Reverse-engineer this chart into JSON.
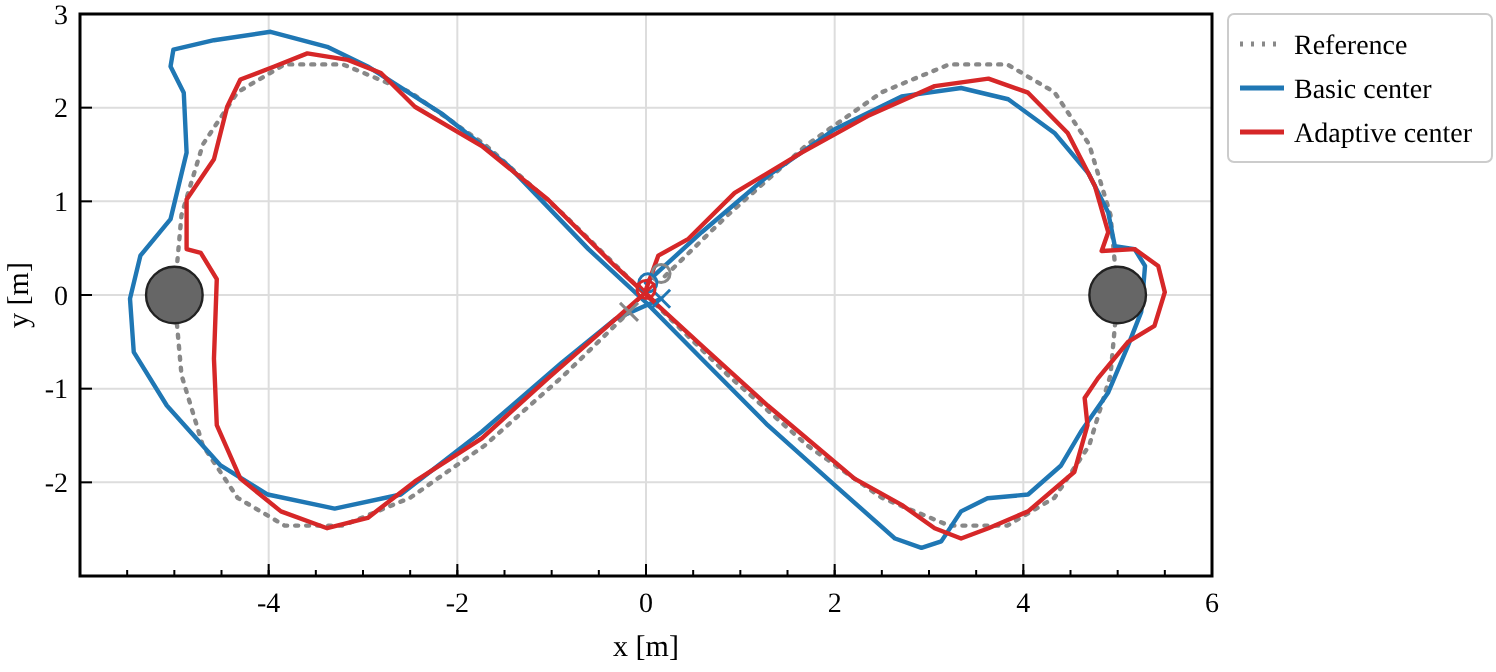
{
  "chart_data": {
    "type": "line",
    "xlabel": "x [m]",
    "ylabel": "y [m]",
    "xlim": [
      -6,
      6
    ],
    "ylim": [
      -3,
      3
    ],
    "xticks": [
      -4,
      -2,
      0,
      2,
      4,
      6
    ],
    "yticks": [
      -2,
      -1,
      0,
      1,
      2,
      3
    ],
    "grid": true,
    "legend": "top right",
    "series": [
      {
        "name": "Reference",
        "color": "#888888",
        "line_style": "dotted",
        "x": [
          0.2,
          0.868,
          1.71,
          2.5,
          3.214,
          3.83,
          4.33,
          4.698,
          4.924,
          5,
          4.924,
          4.698,
          4.33,
          3.83,
          3.214,
          2.5,
          1.71,
          0.868,
          0,
          -0.868,
          -1.71,
          -2.5,
          -3.214,
          -3.83,
          -4.33,
          -4.698,
          -4.924,
          -5,
          -4.924,
          -4.698,
          -4.33,
          -3.83,
          -3.214,
          -2.5,
          -1.71,
          -0.868,
          -0.2
        ],
        "values": [
          0.2,
          0.855,
          1.607,
          2.165,
          2.462,
          2.462,
          2.165,
          1.607,
          0.855,
          0,
          -0.855,
          -1.607,
          -2.165,
          -2.462,
          -2.462,
          -2.165,
          -1.607,
          -0.855,
          0,
          0.855,
          1.607,
          2.165,
          2.462,
          2.462,
          2.165,
          1.607,
          0.855,
          0,
          -0.855,
          -1.607,
          -2.165,
          -2.462,
          -2.462,
          -2.165,
          -1.607,
          -0.855,
          -0.2
        ]
      },
      {
        "name": "Basic center",
        "color": "#1f77b4",
        "line_style": "solid",
        "x": [
          0,
          0.59,
          1.29,
          2,
          2.71,
          3.34,
          3.84,
          4.33,
          4.69,
          4.9,
          4.97,
          5.18,
          5.29,
          5.25,
          5.11,
          4.9,
          4.61,
          4.4,
          4.05,
          3.62,
          3.34,
          3.13,
          2.92,
          2.64,
          2,
          1.29,
          0.59,
          0,
          -0.61,
          -1.46,
          -2.17,
          -2.95,
          -3.38,
          -3.98,
          -4.58,
          -5.01,
          -5.04,
          -4.9,
          -4.87,
          -5.04,
          -5.36,
          -5.47,
          -5.43,
          -5.08,
          -4.51,
          -4.01,
          -3.3,
          -2.6,
          -1.74,
          -0.89,
          -0.33,
          0.16
        ],
        "values": [
          0.13,
          0.67,
          1.27,
          1.77,
          2.12,
          2.21,
          2.09,
          1.73,
          1.3,
          0.88,
          0.52,
          0.49,
          0.31,
          -0.18,
          -0.54,
          -1.04,
          -1.46,
          -1.82,
          -2.13,
          -2.17,
          -2.31,
          -2.63,
          -2.7,
          -2.6,
          -2.03,
          -1.39,
          -0.68,
          -0.08,
          0.49,
          1.38,
          1.94,
          2.44,
          2.65,
          2.81,
          2.72,
          2.62,
          2.44,
          2.16,
          1.52,
          0.81,
          0.42,
          -0.04,
          -0.61,
          -1.18,
          -1.82,
          -2.13,
          -2.28,
          -2.13,
          -1.46,
          -0.72,
          -0.26,
          -0.04
        ]
      },
      {
        "name": "Adaptive center",
        "color": "#d62728",
        "line_style": "solid",
        "x": [
          0,
          0.13,
          0.45,
          0.94,
          1.65,
          2.35,
          3.06,
          3.63,
          4.05,
          4.47,
          4.76,
          4.9,
          4.83,
          5.18,
          5.43,
          5.5,
          5.39,
          5.11,
          4.79,
          4.65,
          4.68,
          4.54,
          4.05,
          3.63,
          3.34,
          3.06,
          2.71,
          2.21,
          1.29,
          0.59,
          0.09,
          -0.33,
          -1.04,
          -1.74,
          -2.45,
          -2.81,
          -3.16,
          -3.59,
          -3.94,
          -4.3,
          -4.44,
          -4.58,
          -4.87,
          -4.87,
          -4.72,
          -4.55,
          -4.58,
          -4.55,
          -4.3,
          -3.87,
          -3.38,
          -2.95,
          -2.45,
          -1.74,
          -1.04,
          -0.36,
          0
        ],
        "values": [
          0.06,
          0.42,
          0.6,
          1.09,
          1.52,
          1.91,
          2.23,
          2.31,
          2.16,
          1.73,
          1.16,
          0.67,
          0.47,
          0.49,
          0.31,
          0.03,
          -0.33,
          -0.5,
          -0.89,
          -1.1,
          -1.39,
          -1.89,
          -2.31,
          -2.49,
          -2.6,
          -2.49,
          -2.24,
          -1.96,
          -1.18,
          -0.54,
          -0.08,
          0.31,
          1.02,
          1.59,
          2.01,
          2.37,
          2.51,
          2.58,
          2.44,
          2.3,
          2.01,
          1.45,
          1.02,
          0.49,
          0.45,
          0.17,
          -0.68,
          -1.39,
          -1.96,
          -2.31,
          -2.49,
          -2.38,
          -1.99,
          -1.53,
          -0.89,
          -0.29,
          0.03
        ]
      },
      {
        "type": "bubble",
        "color": "#666666",
        "x": [
          -5,
          5
        ],
        "values": [
          0,
          0
        ],
        "sizes": [
          1,
          1
        ]
      },
      {
        "type": "scatter",
        "marker": "circle",
        "color": "#888888",
        "x": [
          0.16
        ],
        "values": [
          0.23
        ]
      },
      {
        "type": "scatter",
        "marker": "cross",
        "color": "#888888",
        "x": [
          -0.18
        ],
        "values": [
          -0.18
        ]
      },
      {
        "type": "scatter",
        "marker": "circle",
        "color": "#1f77b4",
        "x": [
          0.02
        ],
        "values": [
          0.13
        ]
      },
      {
        "type": "scatter",
        "marker": "cross",
        "color": "#1f77b4",
        "x": [
          0.16
        ],
        "values": [
          -0.04
        ]
      },
      {
        "type": "scatter",
        "marker": "circle",
        "color": "#d62728",
        "x": [
          0
        ],
        "values": [
          0.06
        ]
      },
      {
        "type": "scatter",
        "marker": "cross",
        "color": "#d62728",
        "x": [
          0
        ],
        "values": [
          0.03
        ]
      }
    ]
  }
}
